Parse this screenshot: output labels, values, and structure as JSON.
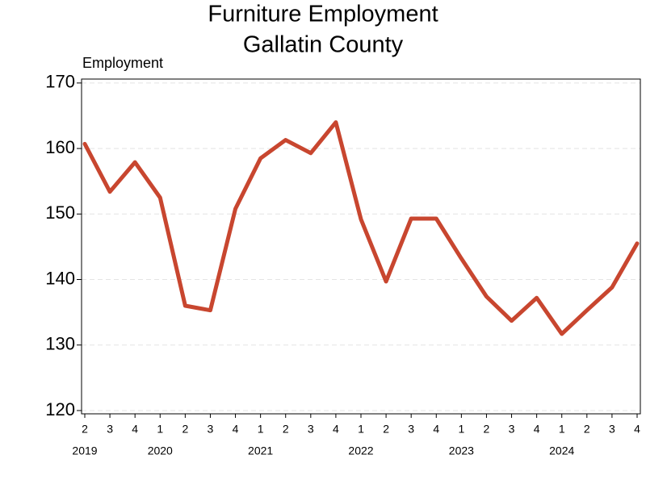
{
  "chart_data": {
    "type": "line",
    "title": [
      "Furniture Employment",
      "Gallatin County"
    ],
    "y_label": "Employment",
    "categories": [
      "2",
      "3",
      "4",
      "1",
      "2",
      "3",
      "4",
      "1",
      "2",
      "3",
      "4",
      "1",
      "2",
      "3",
      "4",
      "1",
      "2",
      "3",
      "4",
      "1",
      "2",
      "3",
      "4"
    ],
    "years": [
      "2019",
      "2020",
      "2021",
      "2022",
      "2023",
      "2024"
    ],
    "series": [
      {
        "name": "Employment",
        "color": "#c8462f",
        "values": [
          160.7,
          153.4,
          157.9,
          152.5,
          136.0,
          135.3,
          150.8,
          158.5,
          161.3,
          159.3,
          164.0,
          149.2,
          139.7,
          149.3,
          149.3,
          143.2,
          137.4,
          133.7,
          137.2,
          131.7,
          135.3,
          138.8,
          145.5
        ]
      }
    ],
    "ylim": [
      119.5,
      170.6
    ],
    "yticks": [
      120,
      130,
      140,
      150,
      160,
      170
    ],
    "grid": true
  }
}
